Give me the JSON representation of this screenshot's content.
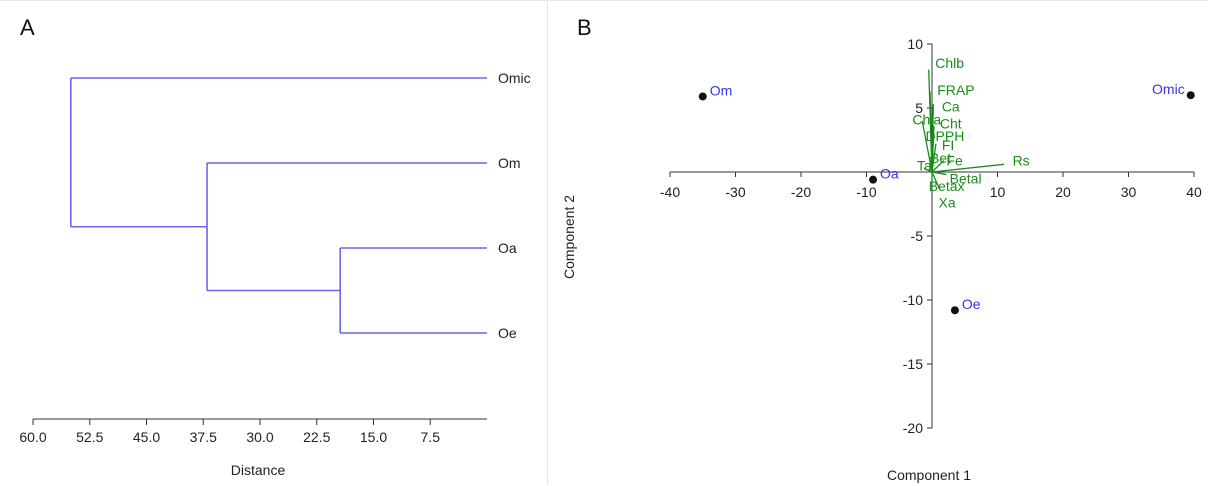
{
  "chart_data": [
    {
      "type": "dendrogram",
      "panel_label": "A",
      "xlabel": "Distance",
      "ylabel": "",
      "xlim": [
        60,
        0
      ],
      "xticks": [
        60.0,
        52.5,
        45.0,
        37.5,
        30.0,
        22.5,
        15.0,
        7.5
      ],
      "xtick_labels": [
        "60.0",
        "52.5",
        "45.0",
        "37.5",
        "30.0",
        "22.5",
        "15.0",
        "7.5"
      ],
      "leaves": [
        "Omic",
        "Om",
        "Oa",
        "Oe"
      ],
      "merges": [
        {
          "id": "n1",
          "children": [
            "Oa",
            "Oe"
          ],
          "distance": 19.4
        },
        {
          "id": "n2",
          "children": [
            "Om",
            "n1"
          ],
          "distance": 37.0
        },
        {
          "id": "n3",
          "children": [
            "Omic",
            "n2"
          ],
          "distance": 55.0
        }
      ],
      "line_color": "#6666ee"
    },
    {
      "type": "biplot",
      "panel_label": "B",
      "xlabel": "Component 1",
      "ylabel": "Component 2",
      "xlim": [
        -40,
        40
      ],
      "ylim": [
        -20,
        10
      ],
      "xticks": [
        -40,
        -30,
        -20,
        -10,
        10,
        20,
        30,
        40
      ],
      "xtick_labels": [
        "-40",
        "-30",
        "-20",
        "-10",
        "10",
        "20",
        "30",
        "40"
      ],
      "yticks": [
        10,
        5,
        -5,
        -10,
        -15,
        -20
      ],
      "ytick_labels": [
        "10",
        "5",
        "-5",
        "-10",
        "-15",
        "-20"
      ],
      "point_label_color": "#3333ee",
      "vector_color": "#1a8c1a",
      "points": [
        {
          "label": "Om",
          "x": -35,
          "y": 5.9
        },
        {
          "label": "Omic",
          "x": 39.5,
          "y": 6.0
        },
        {
          "label": "Oa",
          "x": -9.0,
          "y": -0.6
        },
        {
          "label": "Oe",
          "x": 3.5,
          "y": -10.8
        }
      ],
      "vectors": [
        {
          "label": "Chlb",
          "x": -0.5,
          "y": 8.0,
          "lx": 0.5,
          "ly": 8.5
        },
        {
          "label": "FRAP",
          "x": -0.3,
          "y": 6.3,
          "lx": 0.8,
          "ly": 6.4
        },
        {
          "label": "Ca",
          "x": 0.2,
          "y": 5.3,
          "lx": 1.5,
          "ly": 5.1
        },
        {
          "label": "Chla",
          "x": -1.5,
          "y": 4.0,
          "lx": -3.0,
          "ly": 4.1
        },
        {
          "label": "Cht",
          "x": 0.3,
          "y": 3.6,
          "lx": 1.2,
          "ly": 3.8
        },
        {
          "label": "DPPH",
          "x": 0.2,
          "y": 2.8,
          "lx": -1.0,
          "ly": 2.8
        },
        {
          "label": "FI",
          "x": 0.6,
          "y": 2.2,
          "lx": 1.5,
          "ly": 2.1
        },
        {
          "label": "Bet",
          "x": -0.2,
          "y": 1.2,
          "lx": -0.3,
          "ly": 1.1
        },
        {
          "label": "Fe",
          "x": 1.8,
          "y": 0.9,
          "lx": 2.2,
          "ly": 0.9
        },
        {
          "label": "Rs",
          "x": 11.0,
          "y": 0.6,
          "lx": 12.3,
          "ly": 0.9
        },
        {
          "label": "Ta",
          "x": -1.2,
          "y": 0.3,
          "lx": -2.3,
          "ly": 0.5
        },
        {
          "label": "Betal",
          "x": 2.2,
          "y": -0.2,
          "lx": 2.7,
          "ly": -0.5
        },
        {
          "label": "Betax",
          "x": 0.0,
          "y": -0.7,
          "lx": -0.5,
          "ly": -1.1
        },
        {
          "label": "Xa",
          "x": 1.2,
          "y": -1.4,
          "lx": 1.0,
          "ly": -2.4
        }
      ]
    }
  ]
}
